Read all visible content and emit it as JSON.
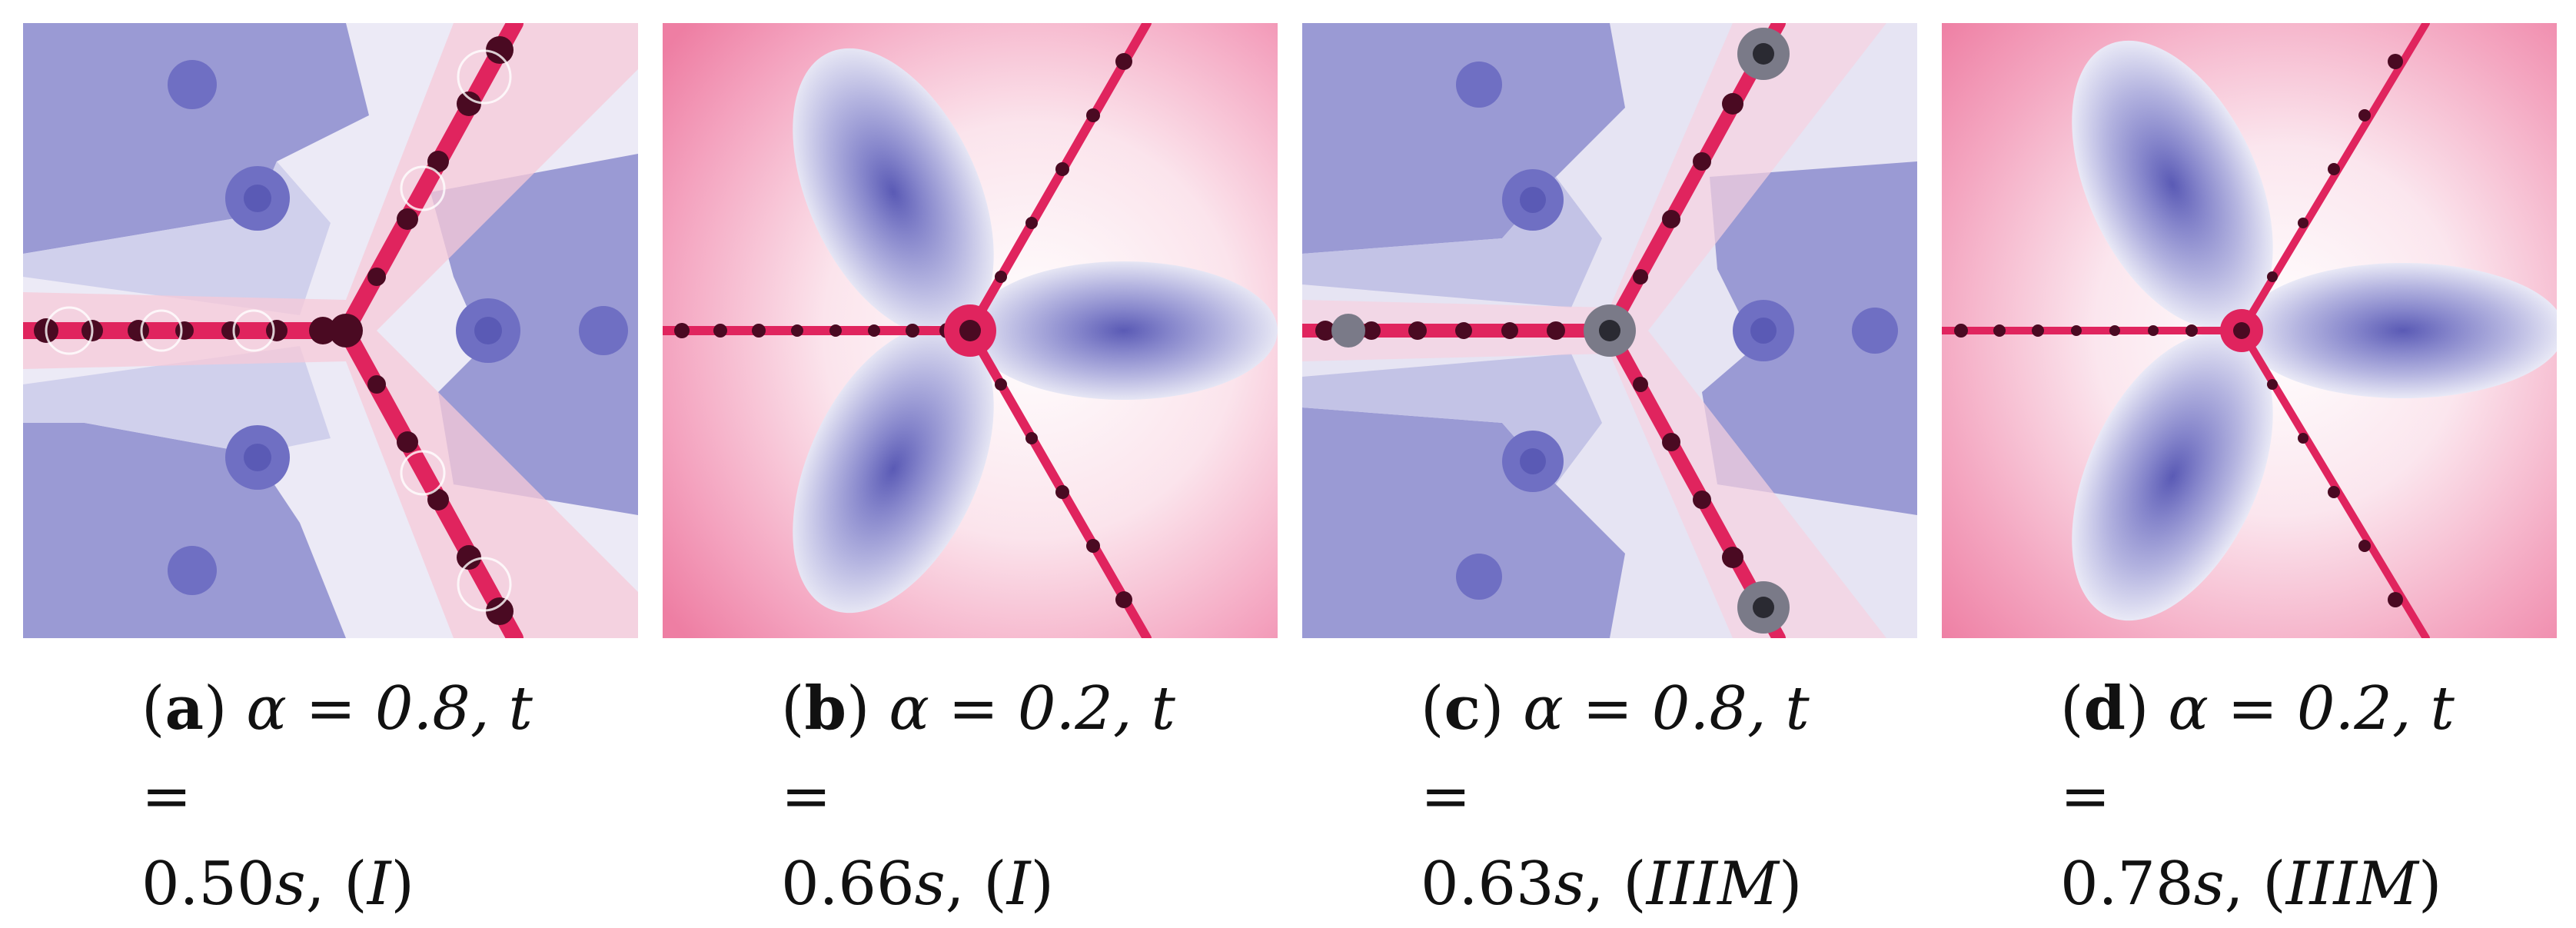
{
  "colors": {
    "basin_dark": "#6a6abf",
    "basin_mid": "#9a9ad4",
    "basin_light": "#c9c9ea",
    "pale": "#f2f0f8",
    "pink_light": "#f7c9d8",
    "pink": "#ee7ea3",
    "magenta": "#e0245e",
    "dark_crimson": "#4a0a22"
  },
  "panels": [
    {
      "id": "a",
      "label": "a",
      "line1_a": "α = 0.8, ",
      "line1_b": "t",
      "line1_c": " =",
      "line2_a": "0.50",
      "line2_b": "s",
      "line2_c": ", (",
      "line2_d": "I",
      "line2_e": ")"
    },
    {
      "id": "b",
      "label": "b",
      "line1_a": "α = 0.2, ",
      "line1_b": "t",
      "line1_c": " =",
      "line2_a": "0.66",
      "line2_b": "s",
      "line2_c": ", (",
      "line2_d": "I",
      "line2_e": ")"
    },
    {
      "id": "c",
      "label": "c",
      "line1_a": "α = 0.8, ",
      "line1_b": "t",
      "line1_c": " =",
      "line2_a": "0.63",
      "line2_b": "s",
      "line2_c": ", (",
      "line2_d": "IIIM",
      "line2_e": ")"
    },
    {
      "id": "d",
      "label": "d",
      "line1_a": "α = 0.2, ",
      "line1_b": "t",
      "line1_c": " =",
      "line2_a": "0.78",
      "line2_b": "s",
      "line2_c": ", (",
      "line2_d": "IIIM",
      "line2_e": ")"
    }
  ]
}
